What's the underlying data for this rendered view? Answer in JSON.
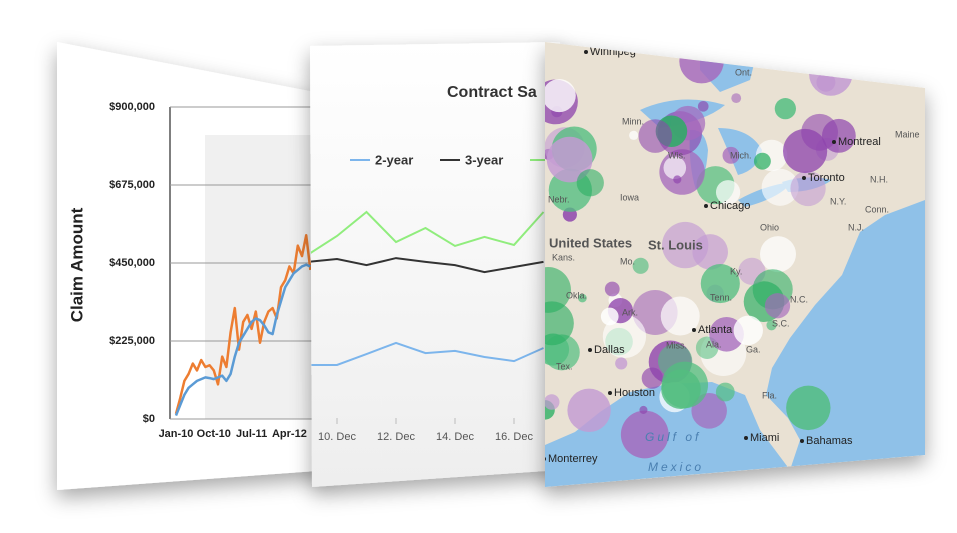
{
  "chart_data": [
    {
      "type": "line",
      "y_label": "Claim Amount",
      "categories": [
        "Jan-10",
        null,
        null,
        null,
        null,
        null,
        null,
        null,
        null,
        "Oct-10",
        null,
        null,
        null,
        null,
        null,
        null,
        null,
        null,
        "Jul-11",
        null,
        null,
        null,
        null,
        null,
        null,
        null,
        null,
        "Apr-12",
        null,
        null,
        null,
        null,
        null
      ],
      "series": [
        {
          "color": "#5b9bd5",
          "values": [
            10000,
            40000,
            70000,
            90000,
            100000,
            110000,
            115000,
            120000,
            118000,
            115000,
            120000,
            125000,
            110000,
            130000,
            180000,
            220000,
            240000,
            260000,
            280000,
            290000,
            285000,
            270000,
            250000,
            245000,
            300000,
            340000,
            380000,
            400000,
            420000,
            430000,
            440000,
            445000,
            440000
          ]
        },
        {
          "color": "#ed7d31",
          "values": [
            15000,
            60000,
            110000,
            130000,
            160000,
            140000,
            170000,
            150000,
            155000,
            140000,
            100000,
            180000,
            150000,
            250000,
            320000,
            200000,
            280000,
            300000,
            260000,
            310000,
            220000,
            280000,
            310000,
            320000,
            290000,
            380000,
            400000,
            440000,
            420000,
            500000,
            470000,
            530000,
            430000
          ]
        }
      ],
      "ylim": [
        0,
        900000
      ],
      "yticks": [
        {
          "value": 0,
          "label": "$0"
        },
        {
          "value": 225000,
          "label": "$225,000"
        },
        {
          "value": 450000,
          "label": "$450,000"
        },
        {
          "value": 675000,
          "label": "$675,000"
        },
        {
          "value": 900000,
          "label": "$900,000"
        }
      ],
      "grid": true
    },
    {
      "type": "line",
      "title": "Contract Sa",
      "x": [
        9,
        10,
        11,
        12,
        13,
        14,
        15,
        16,
        17
      ],
      "xticks": [
        {
          "value": 10,
          "label": "10. Dec"
        },
        {
          "value": 12,
          "label": "12. Dec"
        },
        {
          "value": 14,
          "label": "14. Dec"
        },
        {
          "value": 16,
          "label": "16. Dec"
        }
      ],
      "series": [
        {
          "name": "2-year",
          "color": "#7cb5ec",
          "values": [
            1.72,
            1.72,
            2.06,
            2.41,
            2.09,
            2.16,
            1.97,
            1.84,
            2.25
          ]
        },
        {
          "name": "3-year",
          "color": "#333333",
          "values": [
            4.94,
            5.03,
            4.84,
            5.06,
            4.94,
            4.84,
            4.62,
            4.78,
            4.94
          ]
        },
        {
          "color": "#90ed7d",
          "values": [
            5.16,
            5.75,
            6.5,
            5.56,
            6.0,
            5.44,
            5.72,
            5.47,
            6.5
          ]
        }
      ],
      "ylim": [
        0,
        10
      ]
    }
  ],
  "map": {
    "labels": [
      "Winnipeg",
      "Ont.",
      "Minn.",
      "Wis.",
      "Mich.",
      "Montreal",
      "Toronto",
      "Iowa",
      "Chicago",
      "Nebr.",
      "United States",
      "St. Louis",
      "Ohio",
      "Kans.",
      "Mo.",
      "Ky.",
      "N.Y.",
      "N.J.",
      "Conn.",
      "Maine",
      "N.H.",
      "Tenn.",
      "Ark.",
      "Okla.",
      "N.C.",
      "Atlanta",
      "S.C.",
      "Miss.",
      "Ala.",
      "Ga.",
      "Dallas",
      "Tex.",
      "Houston",
      "Fla.",
      "Miami",
      "Bahamas",
      "Gulf of",
      "Mexico",
      "Monterrey"
    ]
  }
}
